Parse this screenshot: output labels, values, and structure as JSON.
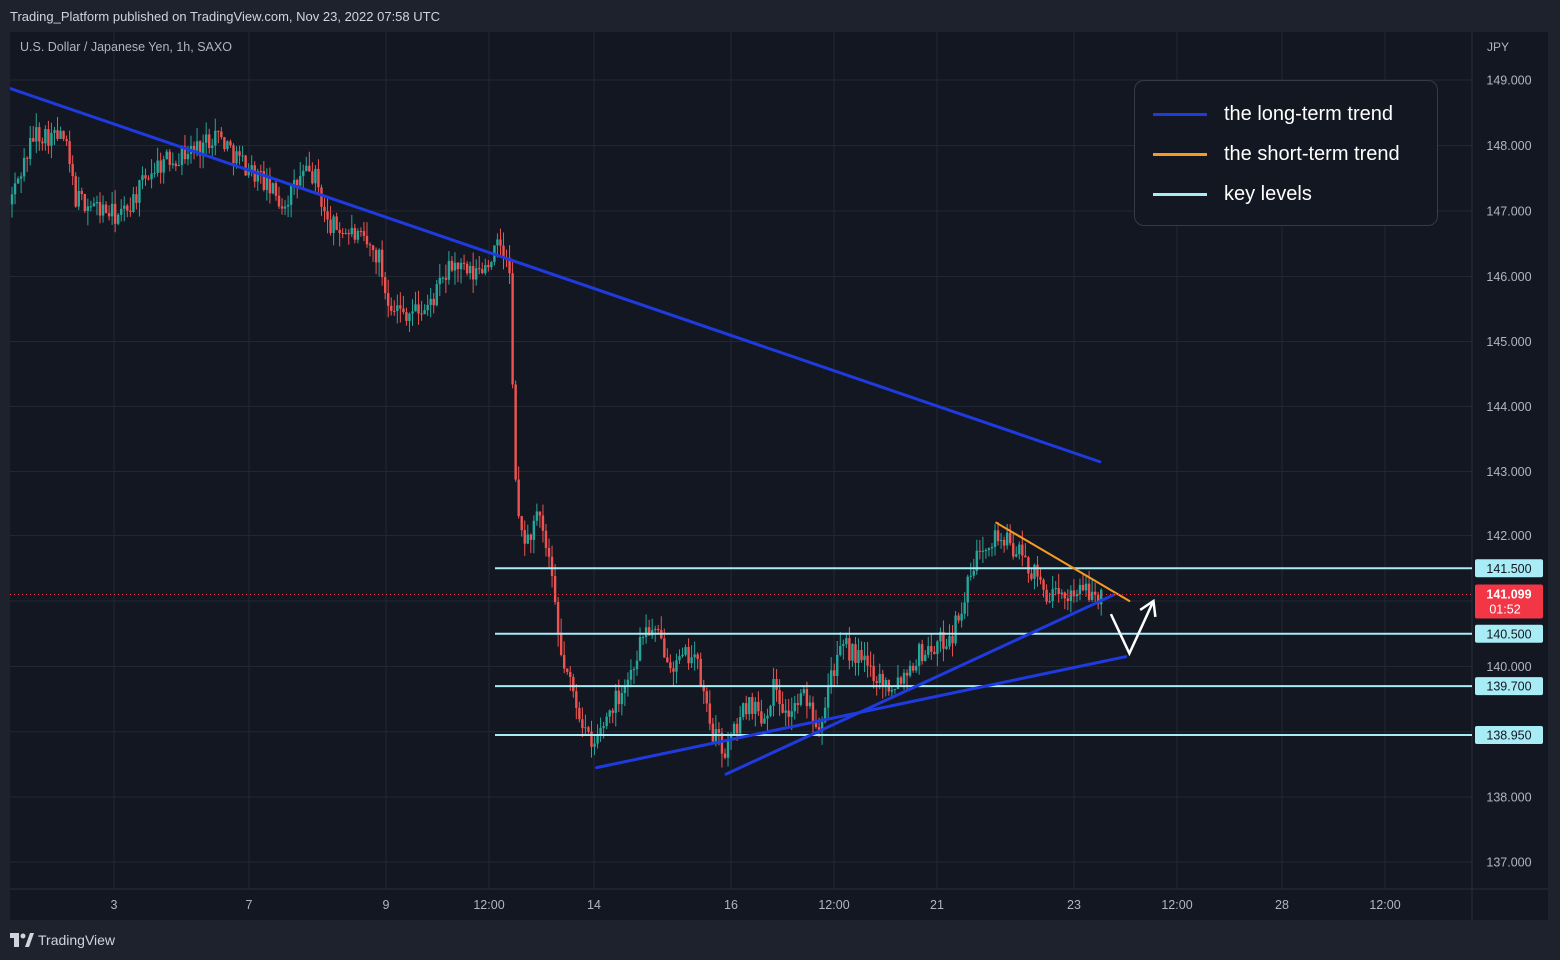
{
  "header": {
    "publish_info": "Trading_Platform published on TradingView.com, Nov 23, 2022 07:58 UTC"
  },
  "footer": {
    "brand": "TradingView",
    "logo_icon": "tradingview-logo-icon"
  },
  "legend": {
    "items": [
      {
        "label": "the long-term trend",
        "color": "#1f3be0"
      },
      {
        "label": "the short-term trend",
        "color": "#f59b23"
      },
      {
        "label": "key levels",
        "color": "#a8ecf5"
      }
    ]
  },
  "colors": {
    "background": "#131722",
    "frame": "#1e222d",
    "grid": "#232733",
    "up_candle": "#26a69a",
    "down_candle": "#ef5350",
    "long_term_trend": "#1f3be0",
    "short_term_trend": "#f59b23",
    "key_level": "#a8ecf5",
    "price_badge": "#f23645"
  },
  "chart_data": {
    "type": "candlestick",
    "title": "U.S. Dollar / Japanese Yen, 1h, SAXO",
    "currency": "JPY",
    "ylim": [
      136.3,
      149.9
    ],
    "y_ticks": [
      137.0,
      138.0,
      139.0,
      140.0,
      141.0,
      142.0,
      143.0,
      144.0,
      145.0,
      146.0,
      147.0,
      148.0,
      149.0
    ],
    "y_tick_labels": [
      "137.000",
      "138.000",
      "",
      "140.000",
      "",
      "142.000",
      "143.000",
      "144.000",
      "145.000",
      "146.000",
      "147.000",
      "148.000",
      "149.000"
    ],
    "x_tick_labels": [
      "3",
      "7",
      "9",
      "12:00",
      "14",
      "16",
      "12:00",
      "21",
      "23",
      "12:00",
      "28",
      "12:00"
    ],
    "grid": true,
    "current_price": {
      "value": 141.099,
      "label": "141.099",
      "countdown": "01:52"
    },
    "key_levels": [
      {
        "value": 141.5,
        "label": "141.500"
      },
      {
        "value": 140.5,
        "label": "140.500"
      },
      {
        "value": 139.7,
        "label": "139.700"
      },
      {
        "value": 138.95,
        "label": "138.950"
      }
    ],
    "price_path": [
      [
        0,
        147.1
      ],
      [
        0.7,
        148.2
      ],
      [
        1.5,
        148.1
      ],
      [
        1.8,
        147.2
      ],
      [
        3.0,
        146.9
      ],
      [
        3.5,
        147.3
      ],
      [
        3.8,
        147.6
      ],
      [
        4.0,
        147.7
      ],
      [
        5.2,
        148.0
      ],
      [
        5.6,
        148.2
      ],
      [
        6.2,
        147.8
      ],
      [
        6.8,
        147.5
      ],
      [
        7.4,
        147.1
      ],
      [
        8.0,
        147.6
      ],
      [
        8.3,
        147.5
      ],
      [
        8.6,
        146.8
      ],
      [
        9.3,
        146.65
      ],
      [
        10.0,
        146.3
      ],
      [
        10.2,
        145.7
      ],
      [
        10.6,
        145.45
      ],
      [
        11.3,
        145.5
      ],
      [
        11.6,
        145.8
      ],
      [
        12.0,
        146.2
      ],
      [
        12.5,
        146.0
      ],
      [
        12.9,
        146.2
      ],
      [
        13.3,
        146.5
      ],
      [
        13.55,
        146.0
      ],
      [
        13.62,
        144.0
      ],
      [
        13.75,
        142.2
      ],
      [
        14.0,
        141.9
      ],
      [
        14.3,
        142.3
      ],
      [
        14.6,
        141.6
      ],
      [
        14.9,
        140.2
      ],
      [
        15.3,
        139.5
      ],
      [
        15.6,
        139.0
      ],
      [
        15.75,
        138.7
      ],
      [
        16.2,
        139.3
      ],
      [
        16.8,
        139.9
      ],
      [
        17.2,
        140.6
      ],
      [
        17.6,
        140.4
      ],
      [
        18.0,
        140.0
      ],
      [
        18.5,
        140.25
      ],
      [
        19.0,
        139.0
      ],
      [
        19.35,
        138.7
      ],
      [
        19.6,
        139.0
      ],
      [
        20.0,
        139.5
      ],
      [
        20.4,
        139.2
      ],
      [
        20.7,
        139.75
      ],
      [
        21.0,
        139.25
      ],
      [
        21.5,
        139.55
      ],
      [
        21.9,
        139.1
      ],
      [
        22.2,
        139.9
      ],
      [
        22.6,
        140.3
      ],
      [
        23.0,
        140.1
      ],
      [
        23.4,
        139.9
      ],
      [
        23.8,
        139.7
      ],
      [
        24.2,
        139.9
      ],
      [
        24.6,
        140.2
      ],
      [
        25.0,
        140.3
      ],
      [
        25.5,
        140.5
      ],
      [
        25.9,
        141.2
      ],
      [
        26.3,
        141.9
      ],
      [
        26.7,
        142.0
      ],
      [
        27.2,
        141.8
      ],
      [
        27.6,
        141.5
      ],
      [
        28.0,
        141.15
      ],
      [
        28.4,
        141.0
      ],
      [
        28.8,
        141.2
      ],
      [
        29.2,
        141.1
      ],
      [
        29.45,
        141.1
      ]
    ],
    "overlays": [
      {
        "name": "long-term downtrend",
        "style": "long_term_trend",
        "points": [
          [
            -0.2,
            148.9
          ],
          [
            29.4,
            143.15
          ]
        ]
      },
      {
        "name": "short-term downtrend",
        "style": "short_term_trend",
        "points": [
          [
            26.6,
            142.2
          ],
          [
            30.2,
            141.0
          ]
        ]
      },
      {
        "name": "rising support upper",
        "style": "long_term_trend",
        "points": [
          [
            19.3,
            138.35
          ],
          [
            29.8,
            141.1
          ]
        ]
      },
      {
        "name": "rising support lower",
        "style": "long_term_trend",
        "points": [
          [
            15.8,
            138.45
          ],
          [
            30.1,
            140.15
          ]
        ]
      }
    ],
    "projection_arrow": {
      "points": [
        [
          29.7,
          140.8
        ],
        [
          30.2,
          140.2
        ],
        [
          30.85,
          141.0
        ]
      ]
    }
  }
}
